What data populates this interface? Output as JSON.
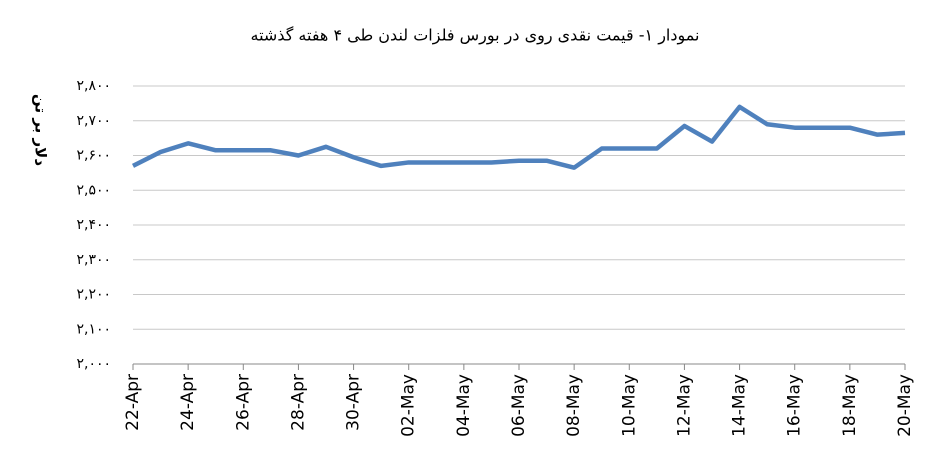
{
  "chart_data": {
    "type": "line",
    "title": "نمودار ۱- قیمت نقدی روی  در بورس فلزات لندن طی ۴ هفته گذشته",
    "y_label": "دلار بر تن",
    "categories": [
      "22-Apr",
      null,
      "24-Apr",
      null,
      "26-Apr",
      null,
      "28-Apr",
      null,
      "30-Apr",
      null,
      "02-May",
      null,
      "04-May",
      null,
      "06-May",
      null,
      "08-May",
      null,
      "10-May",
      null,
      "12-May",
      null,
      "14-May",
      null,
      "16-May",
      null,
      "18-May",
      null,
      "20-May"
    ],
    "series": [
      {
        "name": "قیمت نقدی روی",
        "color": "#4f81bd",
        "values": [
          2570,
          2610,
          2635,
          2615,
          2615,
          2615,
          2600,
          2625,
          2595,
          2570,
          2580,
          2580,
          2580,
          2580,
          2585,
          2585,
          2565,
          2620,
          2620,
          2620,
          2685,
          2640,
          2740,
          2690,
          2680,
          2680,
          2680,
          2660,
          2665
        ]
      }
    ],
    "ylim": [
      2000,
      2800
    ],
    "yticks": [
      {
        "value": 2000,
        "label": "۲,۰۰۰"
      },
      {
        "value": 2100,
        "label": "۲,۱۰۰"
      },
      {
        "value": 2200,
        "label": "۲,۲۰۰"
      },
      {
        "value": 2300,
        "label": "۲,۳۰۰"
      },
      {
        "value": 2400,
        "label": "۲,۴۰۰"
      },
      {
        "value": 2500,
        "label": "۲,۵۰۰"
      },
      {
        "value": 2600,
        "label": "۲,۶۰۰"
      },
      {
        "value": 2700,
        "label": "۲,۷۰۰"
      },
      {
        "value": 2800,
        "label": "۲,۸۰۰"
      }
    ],
    "grid": true
  }
}
